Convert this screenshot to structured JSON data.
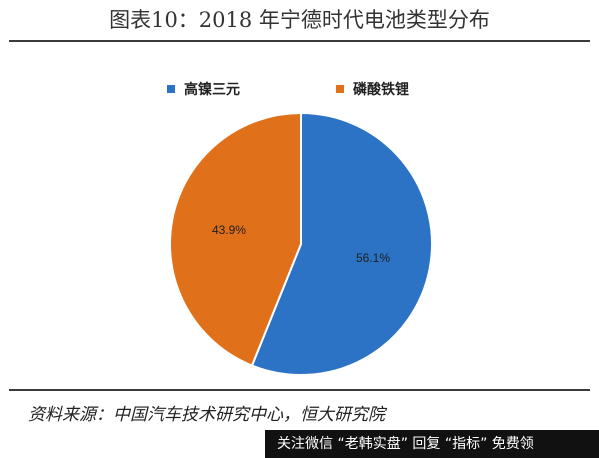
{
  "title": "图表10：2018 年宁德时代电池类型分布",
  "chart_data": {
    "type": "pie",
    "slices": [
      {
        "label": "高镍三元",
        "value": 56.1,
        "display": "56.1%",
        "color": "#2c73c5"
      },
      {
        "label": "磷酸铁锂",
        "value": 43.9,
        "display": "43.9%",
        "color": "#e0711a"
      }
    ],
    "legend_position": "top"
  },
  "source": "资料来源：中国汽车技术研究中心，恒大研究院",
  "watermark": "关注微信 “老韩实盘” 回复 “指标” 免费领"
}
